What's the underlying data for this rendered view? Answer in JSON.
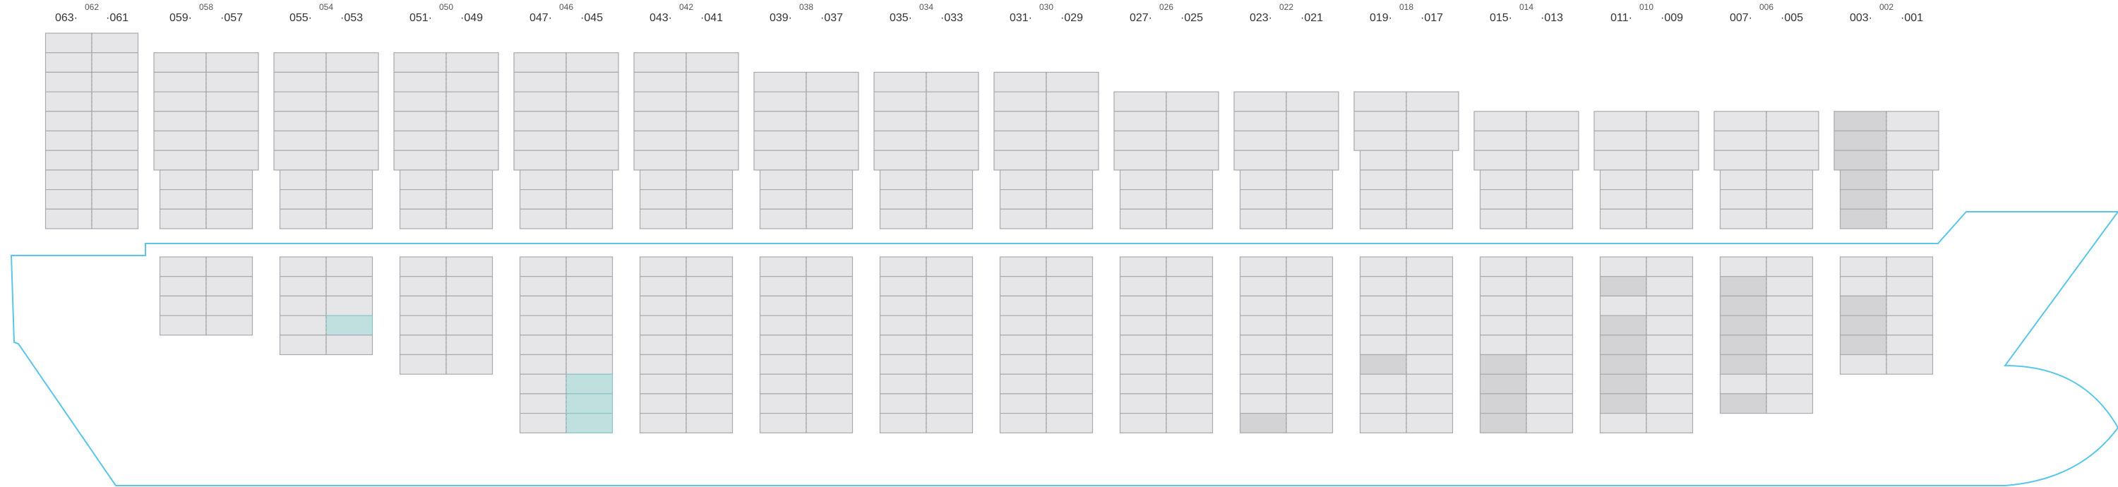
{
  "colors": {
    "slot_fill": "#e6e6e8",
    "slot_stroke": "#a9a9ae",
    "divider": "#9a9a9a",
    "occupied_fill": "#d3d3d6",
    "reefer_fill": "#bfe0df",
    "reefer_stroke": "#8ac2c2",
    "hull_stroke": "#5bc6ea",
    "label": "#333333"
  },
  "bays": [
    {
      "top": "062",
      "left": "063",
      "right": "061"
    },
    {
      "top": "058",
      "left": "059",
      "right": "057"
    },
    {
      "top": "054",
      "left": "055",
      "right": "053"
    },
    {
      "top": "050",
      "left": "051",
      "right": "049"
    },
    {
      "top": "046",
      "left": "047",
      "right": "045"
    },
    {
      "top": "042",
      "left": "043",
      "right": "041"
    },
    {
      "top": "038",
      "left": "039",
      "right": "037"
    },
    {
      "top": "034",
      "left": "035",
      "right": "033"
    },
    {
      "top": "030",
      "left": "031",
      "right": "029"
    },
    {
      "top": "026",
      "left": "027",
      "right": "025"
    },
    {
      "top": "022",
      "left": "023",
      "right": "021"
    },
    {
      "top": "018",
      "left": "019",
      "right": "017"
    },
    {
      "top": "014",
      "left": "015",
      "right": "013"
    },
    {
      "top": "010",
      "left": "011",
      "right": "009"
    },
    {
      "top": "006",
      "left": "007",
      "right": "005"
    },
    {
      "top": "002",
      "left": "003",
      "right": "001"
    }
  ]
}
